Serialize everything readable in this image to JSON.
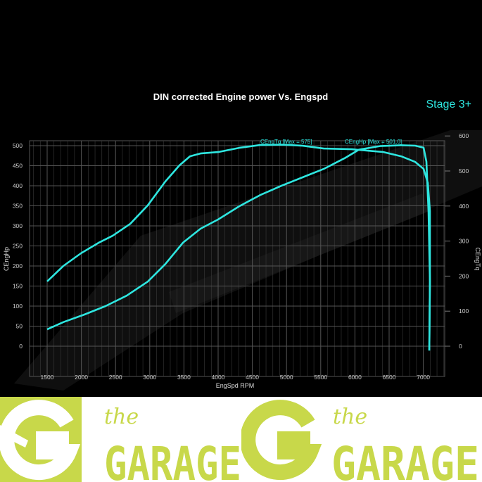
{
  "chart_data": {
    "type": "line",
    "title": "DIN corrected Engine power Vs. Engspd",
    "badge": "Stage 3+",
    "xlabel": "EngSpd RPM",
    "ylabel_left": "CEngHp",
    "ylabel_right": "CEngTq",
    "xlim": [
      1250,
      7400
    ],
    "ylim_left": [
      -70,
      520
    ],
    "ylim_right": [
      -84,
      624
    ],
    "x_ticks": [
      "1500",
      "2000",
      "2500",
      "3000",
      "3500",
      "4000",
      "4500",
      "5000",
      "5500",
      "6000",
      "6500",
      "7000"
    ],
    "y_ticks_left": [
      "0",
      "50",
      "100",
      "150",
      "200",
      "250",
      "300",
      "350",
      "400",
      "450",
      "500"
    ],
    "y_ticks_right": [
      "0",
      "100",
      "200",
      "300",
      "400",
      "500",
      "600"
    ],
    "grid": true,
    "line_color": "#2ee6e0",
    "series": [
      {
        "name": "CEngTq",
        "label": "CEngTq [Max = 575]",
        "axis": "right",
        "points": [
          [
            1500,
            185
          ],
          [
            1737,
            229
          ],
          [
            1994,
            265
          ],
          [
            2251,
            295
          ],
          [
            2457,
            315
          ],
          [
            2714,
            349
          ],
          [
            2971,
            402
          ],
          [
            3228,
            470
          ],
          [
            3434,
            516
          ],
          [
            3588,
            542
          ],
          [
            3743,
            550
          ],
          [
            4000,
            554
          ],
          [
            4309,
            566
          ],
          [
            4617,
            574
          ],
          [
            4926,
            575
          ],
          [
            5235,
            572
          ],
          [
            5543,
            564
          ],
          [
            5955,
            562
          ],
          [
            6418,
            554
          ],
          [
            6675,
            542
          ],
          [
            6881,
            526
          ],
          [
            7004,
            506
          ],
          [
            7066,
            466
          ],
          [
            7097,
            386
          ],
          [
            7097,
            185
          ],
          [
            7087,
            -12
          ]
        ]
      },
      {
        "name": "CEngHp",
        "label": "CEngHp [Max = 501.0]",
        "axis": "left",
        "points": [
          [
            1500,
            42
          ],
          [
            1737,
            60
          ],
          [
            2045,
            79
          ],
          [
            2354,
            100
          ],
          [
            2663,
            126
          ],
          [
            2971,
            161
          ],
          [
            3228,
            205
          ],
          [
            3486,
            258
          ],
          [
            3743,
            293
          ],
          [
            4000,
            316
          ],
          [
            4309,
            349
          ],
          [
            4617,
            377
          ],
          [
            4926,
            400
          ],
          [
            5235,
            421
          ],
          [
            5543,
            442
          ],
          [
            5852,
            469
          ],
          [
            6058,
            490
          ],
          [
            6366,
            499
          ],
          [
            6675,
            501
          ],
          [
            6881,
            500
          ],
          [
            7004,
            495
          ],
          [
            7045,
            460
          ],
          [
            7076,
            337
          ],
          [
            7097,
            161
          ],
          [
            7087,
            -11
          ]
        ]
      }
    ]
  },
  "banner": {
    "brand_color": "#c8d84a",
    "logo_text_small": "the",
    "logo_text_large": "GARAGE"
  }
}
